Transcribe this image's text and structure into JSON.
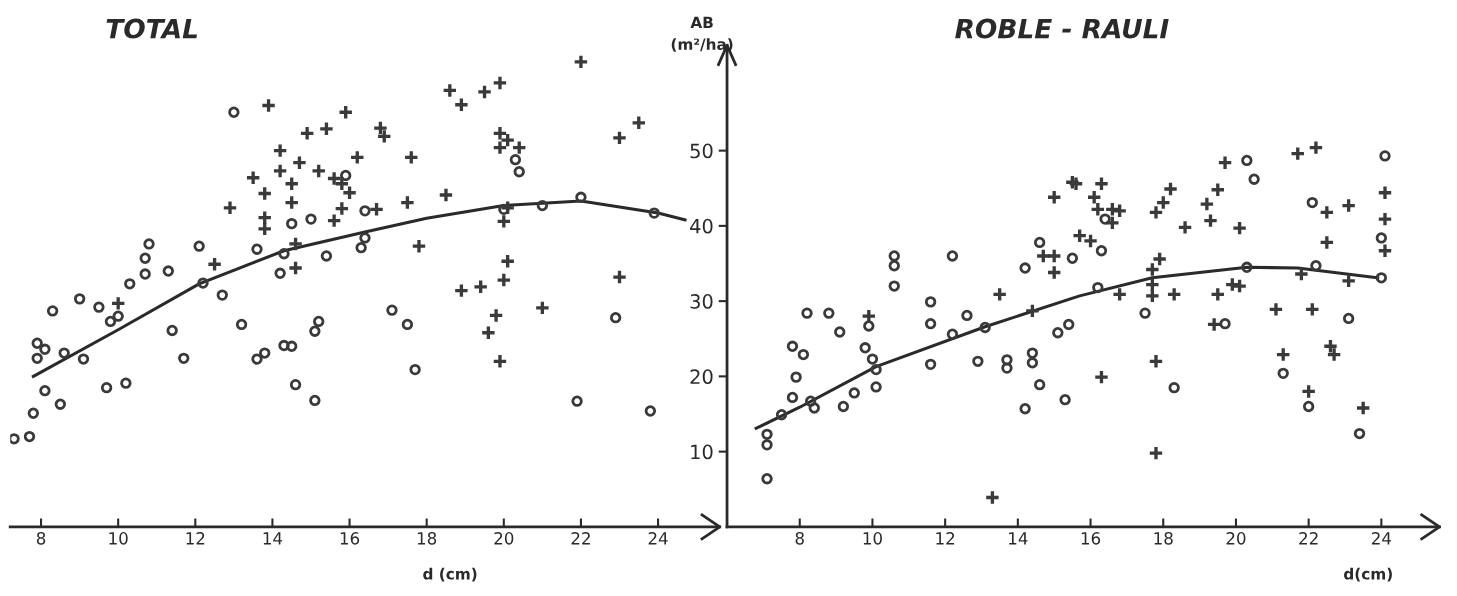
{
  "chart_data": [
    {
      "type": "scatter",
      "title": "TOTAL",
      "xlabel": "d (cm)",
      "xlim": [
        7.2,
        25.6
      ],
      "xticks": [
        8,
        10,
        12,
        14,
        16,
        18,
        20,
        22,
        24
      ],
      "ylim": [
        0,
        64
      ],
      "tick_labels": "x",
      "series": [
        {
          "color": "#3a3a3a",
          "marker": "circle",
          "x": [
            13.0,
            12.1,
            13.6,
            14.5,
            15.0,
            16.4,
            16.3,
            15.4,
            14.3,
            14.2,
            10.8,
            10.7,
            10.7,
            10.3,
            11.3,
            12.2,
            12.7,
            9.0,
            8.3,
            9.5,
            9.8,
            10.0,
            7.9,
            7.9,
            8.1,
            8.6,
            9.1,
            11.4,
            11.7,
            13.2,
            13.6,
            13.8,
            14.3,
            14.5,
            15.1,
            15.2,
            14.6,
            15.1,
            8.1,
            8.5,
            9.7,
            10.2,
            7.8,
            7.7,
            7.3,
            15.9,
            16.4,
            17.1,
            17.5,
            17.7,
            20.3,
            20.4,
            20.0,
            21.0,
            22.0,
            23.9,
            22.9,
            21.9,
            23.8
          ],
          "values": [
            55.1,
            37.3,
            36.9,
            40.3,
            40.9,
            42.0,
            37.1,
            36.0,
            36.3,
            33.7,
            37.6,
            35.7,
            33.6,
            32.3,
            34.0,
            32.4,
            30.8,
            30.3,
            28.7,
            29.2,
            27.3,
            28.0,
            24.4,
            22.4,
            23.6,
            23.1,
            22.3,
            26.1,
            22.4,
            26.9,
            22.3,
            23.1,
            24.1,
            24.0,
            26.0,
            27.3,
            18.9,
            16.8,
            18.1,
            16.3,
            18.5,
            19.1,
            15.1,
            12.0,
            11.7,
            46.7,
            38.4,
            28.8,
            26.9,
            20.9,
            48.8,
            47.2,
            42.2,
            42.7,
            43.8,
            41.7,
            27.8,
            16.7,
            15.4
          ]
        },
        {
          "color": "#3a3a3a",
          "marker": "cross",
          "x": [
            13.9,
            15.9,
            14.9,
            15.4,
            16.2,
            14.2,
            14.7,
            14.2,
            15.2,
            13.5,
            14.5,
            15.6,
            15.8,
            16.0,
            13.8,
            14.5,
            15.8,
            15.6,
            13.8,
            13.8,
            12.9,
            14.6,
            14.6,
            12.5,
            10.0,
            16.7,
            16.8,
            16.9,
            17.6,
            17.5,
            17.8,
            18.5,
            18.6,
            18.9,
            19.5,
            19.9,
            22.0,
            19.9,
            20.1,
            20.4,
            19.9,
            20.1,
            20.0,
            20.1,
            20.0,
            18.9,
            19.4,
            19.8,
            19.6,
            19.9,
            21.0,
            23.0,
            23.0,
            23.5
          ],
          "values": [
            56.0,
            55.1,
            52.3,
            52.9,
            49.1,
            50.0,
            48.4,
            47.3,
            47.3,
            46.4,
            45.6,
            46.3,
            45.6,
            44.4,
            44.3,
            43.1,
            42.3,
            40.7,
            41.1,
            39.6,
            42.4,
            37.6,
            34.4,
            34.9,
            29.7,
            42.2,
            53.0,
            51.9,
            49.1,
            43.1,
            37.3,
            44.1,
            58.0,
            56.1,
            57.8,
            59.0,
            61.8,
            52.3,
            51.4,
            50.4,
            50.4,
            42.4,
            40.6,
            35.3,
            32.8,
            31.4,
            31.9,
            28.1,
            25.8,
            22.0,
            29.1,
            33.2,
            51.7,
            53.7
          ]
        },
        {
          "type": "line",
          "color": "#2a2a2a",
          "x": [
            7.8,
            10.0,
            12.1,
            14.3,
            16.4,
            18.0,
            20.0,
            22.0,
            24.0,
            24.7
          ],
          "values": [
            20.0,
            26.2,
            32.3,
            36.7,
            39.2,
            41.0,
            42.7,
            43.3,
            41.7,
            40.8
          ]
        }
      ]
    },
    {
      "type": "scatter",
      "title": "ROBLE - RAULI",
      "xlabel": "d(cm)",
      "ylabel": "AB\n(m²/ha)",
      "xlim": [
        6.0,
        25.6
      ],
      "xticks": [
        8,
        10,
        12,
        14,
        16,
        18,
        20,
        22,
        24
      ],
      "ylim": [
        0,
        64
      ],
      "yticks": [
        10,
        20,
        30,
        40,
        50
      ],
      "series": [
        {
          "color": "#3a3a3a",
          "marker": "circle",
          "x": [
            7.1,
            7.1,
            7.1,
            7.8,
            8.1,
            7.9,
            7.8,
            8.2,
            8.8,
            9.1,
            8.3,
            8.4,
            9.2,
            9.5,
            9.9,
            9.8,
            10.0,
            10.1,
            10.1,
            10.6,
            10.6,
            10.6,
            11.6,
            11.6,
            11.6,
            12.2,
            12.6,
            12.2,
            12.9,
            13.1,
            13.7,
            13.7,
            14.4,
            14.4,
            14.6,
            14.2,
            15.3,
            15.1,
            15.4,
            14.2,
            14.6,
            15.5,
            7.5,
            16.3,
            16.4,
            17.5,
            16.2,
            18.3,
            19.7,
            20.3,
            20.5,
            20.3,
            22.1,
            22.2,
            23.1,
            21.3,
            22.0,
            23.4,
            24.1,
            24.0,
            24.0
          ],
          "values": [
            6.4,
            12.3,
            10.9,
            24.0,
            22.9,
            19.9,
            17.2,
            28.4,
            28.4,
            25.9,
            16.7,
            15.8,
            16.0,
            17.8,
            26.7,
            23.8,
            22.3,
            20.9,
            18.6,
            36.0,
            34.7,
            32.0,
            29.9,
            27.0,
            21.6,
            36.0,
            28.1,
            25.6,
            22.0,
            26.5,
            22.2,
            21.1,
            23.1,
            21.8,
            18.9,
            15.7,
            16.9,
            25.8,
            26.9,
            34.4,
            37.8,
            35.7,
            14.9,
            36.7,
            40.9,
            28.4,
            31.8,
            18.5,
            27.0,
            48.7,
            46.2,
            34.5,
            43.1,
            34.7,
            27.7,
            20.4,
            16.0,
            12.4,
            49.3,
            38.4,
            33.1
          ]
        },
        {
          "color": "#3a3a3a",
          "marker": "cross",
          "x": [
            9.9,
            13.5,
            14.4,
            13.3,
            15.0,
            15.5,
            14.7,
            15.0,
            15.0,
            15.7,
            15.6,
            16.3,
            16.1,
            16.2,
            16.6,
            16.8,
            16.6,
            16.0,
            16.8,
            16.3,
            18.2,
            18.0,
            17.8,
            17.9,
            17.7,
            17.7,
            17.7,
            17.8,
            17.8,
            18.3,
            18.6,
            19.2,
            19.3,
            19.5,
            19.7,
            20.1,
            19.5,
            19.9,
            20.1,
            19.4,
            21.7,
            22.2,
            21.1,
            21.3,
            21.8,
            22.1,
            22.0,
            22.5,
            22.5,
            22.6,
            22.7,
            23.1,
            23.1,
            23.5,
            24.1,
            24.1,
            24.1
          ],
          "values": [
            28.0,
            30.9,
            28.7,
            3.9,
            43.8,
            45.8,
            36.0,
            36.0,
            33.8,
            38.7,
            45.6,
            45.6,
            43.8,
            42.2,
            42.2,
            42.0,
            40.4,
            38.0,
            30.9,
            19.9,
            44.9,
            43.1,
            41.8,
            35.6,
            34.2,
            32.2,
            30.7,
            22.0,
            9.8,
            30.9,
            39.8,
            42.9,
            40.7,
            44.8,
            48.4,
            39.7,
            30.9,
            32.2,
            32.0,
            26.9,
            49.6,
            50.4,
            28.9,
            22.9,
            33.6,
            28.9,
            18.0,
            41.8,
            37.8,
            24.0,
            22.9,
            42.7,
            32.7,
            15.8,
            44.4,
            40.9,
            36.7
          ]
        },
        {
          "type": "line",
          "color": "#2a2a2a",
          "x": [
            6.8,
            8.0,
            10.1,
            13.1,
            15.7,
            17.7,
            20.3,
            21.7,
            23.9
          ],
          "values": [
            13.1,
            15.9,
            21.3,
            26.6,
            30.7,
            33.1,
            34.5,
            34.4,
            33.1
          ]
        }
      ]
    }
  ]
}
